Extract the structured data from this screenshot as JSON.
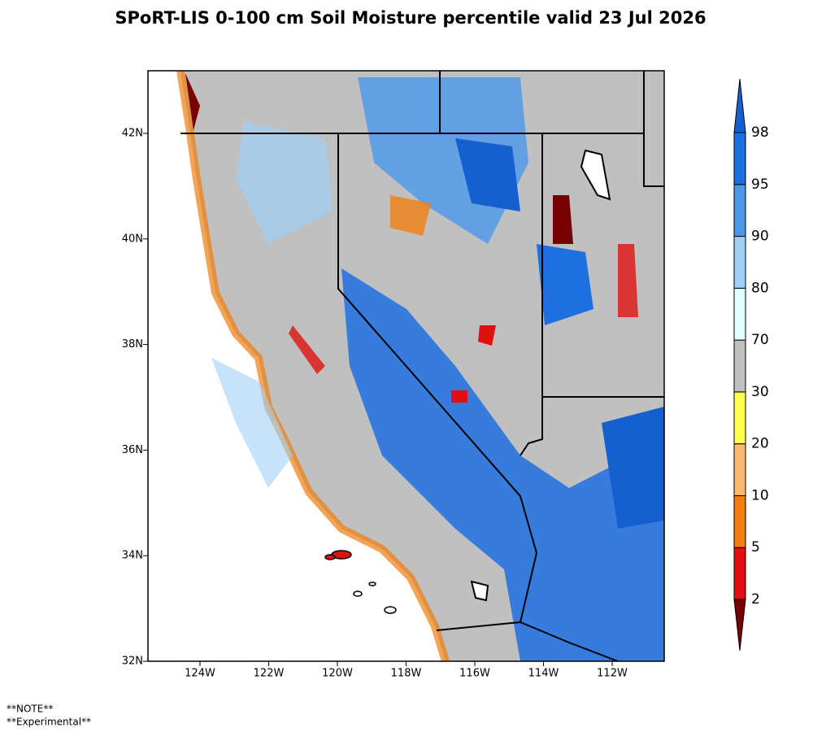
{
  "title": "SPoRT-LIS 0-100 cm Soil Moisture percentile valid 23 Jul 2026",
  "map": {
    "lat_labels": [
      "42N",
      "40N",
      "38N",
      "36N",
      "34N",
      "32N"
    ],
    "lon_labels": [
      "124W",
      "122W",
      "120W",
      "118W",
      "116W",
      "114W",
      "112W"
    ]
  },
  "colorbar": {
    "levels": [
      2,
      5,
      10,
      20,
      30,
      70,
      80,
      90,
      95,
      98
    ],
    "colors": [
      "#780000",
      "#e01010",
      "#f07e10",
      "#ffb870",
      "#ffff50",
      "#c0c0c0",
      "#e0ffff",
      "#a0d0f5",
      "#4a97e8",
      "#1e6fe0",
      "#1560d0"
    ]
  },
  "notes": [
    "**NOTE**",
    "**Experimental**"
  ]
}
